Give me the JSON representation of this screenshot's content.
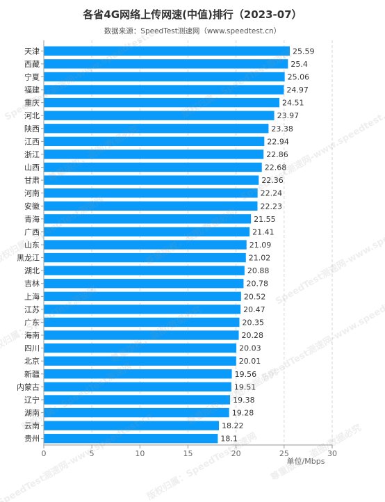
{
  "chart_data": {
    "type": "bar",
    "orientation": "horizontal",
    "title": "各省4G网络上传网速(中值)排行（2023-07）",
    "subtitle": "数据来源：SpeedTest测速网（www.speedtest.cn）",
    "unit_label": "单位/Mbps",
    "categories": [
      "天津",
      "西藏",
      "宁夏",
      "福建",
      "重庆",
      "河北",
      "陕西",
      "江西",
      "浙江",
      "山西",
      "甘肃",
      "河南",
      "安徽",
      "青海",
      "广西",
      "山东",
      "黑龙江",
      "湖北",
      "吉林",
      "上海",
      "江苏",
      "广东",
      "海南",
      "四川",
      "北京",
      "新疆",
      "内蒙古",
      "辽宁",
      "湖南",
      "云南",
      "贵州"
    ],
    "values": [
      25.59,
      25.4,
      25.06,
      24.97,
      24.51,
      23.97,
      23.38,
      22.94,
      22.86,
      22.68,
      22.36,
      22.24,
      22.23,
      21.55,
      21.41,
      21.09,
      21.02,
      20.88,
      20.78,
      20.52,
      20.47,
      20.35,
      20.28,
      20.03,
      20.01,
      19.56,
      19.51,
      19.38,
      19.28,
      18.22,
      18.1
    ],
    "value_labels": [
      "25.59",
      "25.4",
      "25.06",
      "24.97",
      "24.51",
      "23.97",
      "23.38",
      "22.94",
      "22.86",
      "22.68",
      "22.36",
      "22.24",
      "22.23",
      "21.55",
      "21.41",
      "21.09",
      "21.02",
      "20.88",
      "20.78",
      "20.52",
      "20.47",
      "20.35",
      "20.28",
      "20.03",
      "20.01",
      "19.56",
      "19.51",
      "19.38",
      "19.28",
      "18.22",
      "18.1"
    ],
    "xlim": [
      0,
      30
    ],
    "xticks": [
      "0",
      "5",
      "10",
      "15",
      "20",
      "25",
      "30"
    ],
    "grid": "vertical dashed",
    "bar_color": "#0A9BFA"
  },
  "watermark": [
    "SpeedTest测速网-www.speedtest.cn",
    "版权归属：SpeedTest测速网",
    "尊重版权，盗图/数据必究"
  ]
}
